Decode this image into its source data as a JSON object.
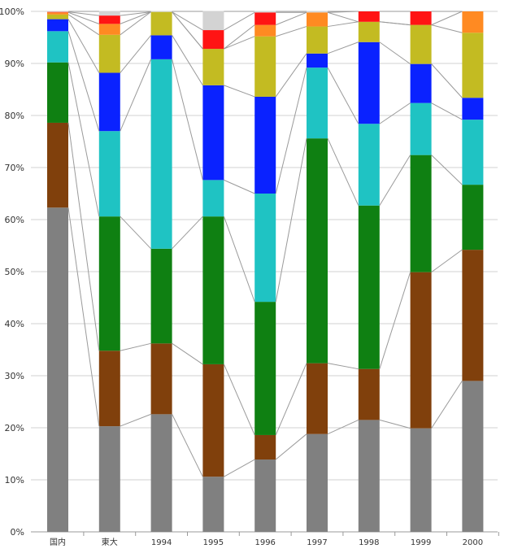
{
  "chart_data": {
    "type": "bar",
    "stacked": true,
    "percent": true,
    "connector_lines": true,
    "grid": true,
    "legend": "none",
    "title": "",
    "xlabel": "",
    "ylabel": "",
    "ylim": [
      0,
      100
    ],
    "yticks": [
      "0%",
      "10%",
      "20%",
      "30%",
      "40%",
      "50%",
      "60%",
      "70%",
      "80%",
      "90%",
      "100%"
    ],
    "categories": [
      "国内",
      "東大",
      "1994",
      "1995",
      "1996",
      "1997",
      "1998",
      "1999",
      "2000"
    ],
    "series": [
      {
        "color": "#808080",
        "values": [
          62.3,
          20.3,
          22.6,
          10.6,
          13.9,
          18.8,
          21.5,
          19.9,
          29.0
        ]
      },
      {
        "color": "#80400c",
        "values": [
          16.3,
          14.5,
          13.6,
          21.6,
          4.7,
          13.6,
          9.8,
          30.0,
          25.2
        ]
      },
      {
        "color": "#0f8012",
        "values": [
          11.6,
          25.8,
          18.2,
          28.4,
          25.6,
          43.2,
          31.4,
          22.5,
          12.5
        ]
      },
      {
        "color": "#1fc3c3",
        "values": [
          6.0,
          16.4,
          36.4,
          7.0,
          20.8,
          13.6,
          15.7,
          10.0,
          12.5
        ]
      },
      {
        "color": "#0a22ff",
        "values": [
          2.3,
          11.2,
          4.6,
          18.2,
          18.6,
          2.7,
          15.7,
          7.5,
          4.2
        ]
      },
      {
        "color": "#c3bb22",
        "values": [
          0.9,
          7.3,
          4.5,
          7.0,
          11.6,
          5.2,
          3.9,
          7.5,
          12.5
        ]
      },
      {
        "color": "#ff8a22",
        "values": [
          0.4,
          2.1,
          0.0,
          0.0,
          2.2,
          2.7,
          0.0,
          0.0,
          4.1
        ]
      },
      {
        "color": "#ff1414",
        "values": [
          0.1,
          1.6,
          0.0,
          3.6,
          2.4,
          0.0,
          2.0,
          2.6,
          0.0
        ]
      },
      {
        "color": "#d3d3d3",
        "values": [
          0.1,
          0.8,
          0.1,
          3.6,
          0.2,
          0.2,
          0.0,
          0.0,
          0.0
        ]
      }
    ]
  }
}
